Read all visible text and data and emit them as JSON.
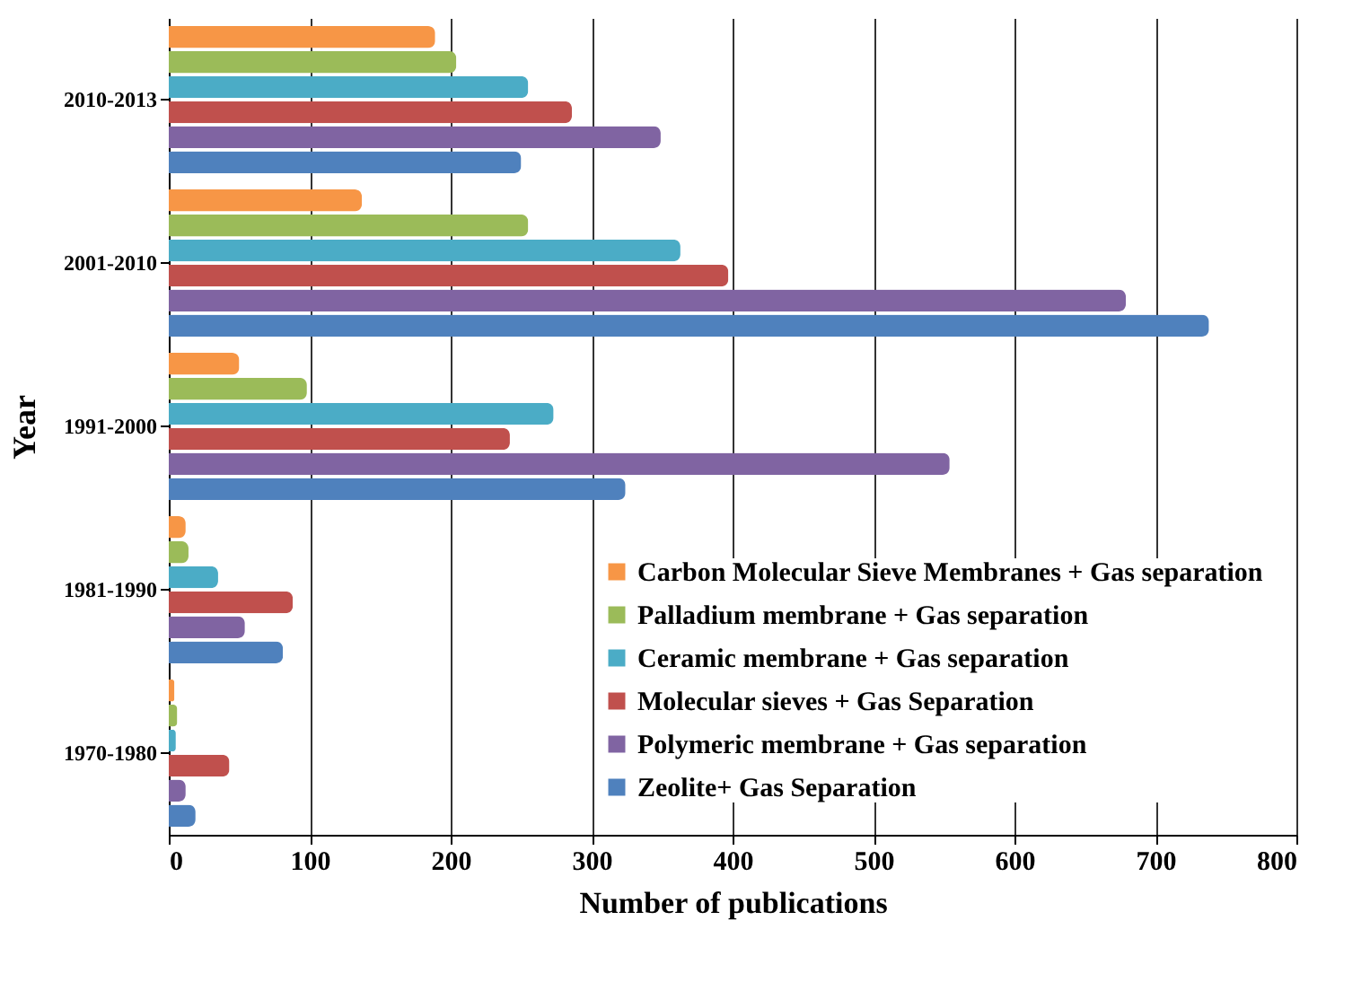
{
  "chart_data": {
    "type": "bar",
    "orientation": "horizontal",
    "xlabel": "Number of publications",
    "ylabel": "Year",
    "categories": [
      "2010-2013",
      "2001-2010",
      "1991-2000",
      "1981-1990",
      "1970-1980"
    ],
    "xlim": [
      0,
      800
    ],
    "xticks": [
      0,
      100,
      200,
      300,
      400,
      500,
      600,
      700,
      800
    ],
    "grid": "x",
    "legend": "bottom right",
    "series": [
      {
        "name": "Carbon Molecular Sieve Membranes + Gas separation",
        "color": "#f79646",
        "values": [
          189,
          137,
          50,
          12,
          4
        ]
      },
      {
        "name": "Palladium membrane + Gas separation",
        "color": "#9bbb59",
        "values": [
          204,
          255,
          98,
          14,
          6
        ]
      },
      {
        "name": "Ceramic membrane + Gas separation",
        "color": "#4bacc6",
        "values": [
          255,
          363,
          273,
          35,
          5
        ]
      },
      {
        "name": "Molecular sieves +  Gas Separation",
        "color": "#c0504d",
        "values": [
          286,
          397,
          242,
          88,
          43
        ]
      },
      {
        "name": "Polymeric membrane + Gas separation",
        "color": "#8064a2",
        "values": [
          349,
          679,
          554,
          54,
          12
        ]
      },
      {
        "name": "Zeolite+ Gas Separation",
        "color": "#4f81bd",
        "values": [
          250,
          738,
          324,
          81,
          19
        ]
      }
    ]
  }
}
